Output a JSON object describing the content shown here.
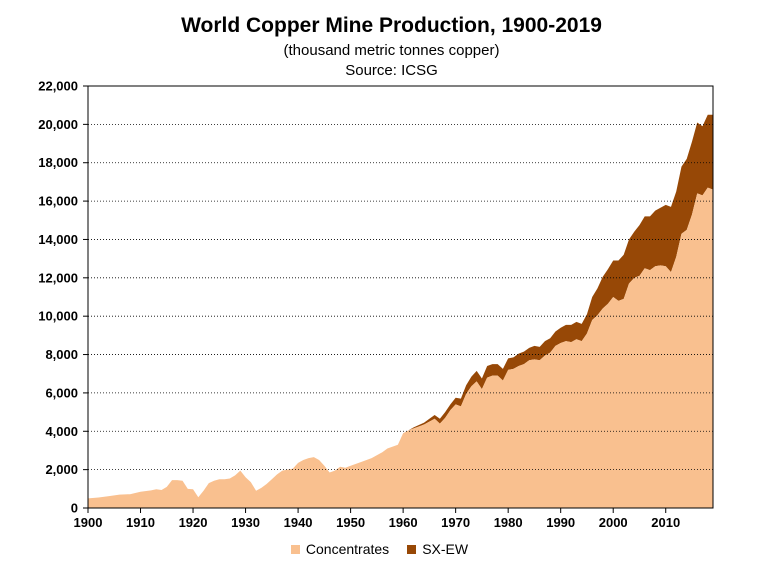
{
  "chart_data": {
    "type": "area",
    "title": "World Copper Mine Production, 1900-2019",
    "subtitle": "(thousand metric tonnes copper)",
    "source": "Source: ICSG",
    "xlabel": "",
    "ylabel": "",
    "xlim": [
      1900,
      2019
    ],
    "ylim": [
      0,
      22000
    ],
    "x_ticks": [
      "1900",
      "1910",
      "1920",
      "1930",
      "1940",
      "1950",
      "1960",
      "1970",
      "1980",
      "1990",
      "2000",
      "2010"
    ],
    "y_ticks": [
      "0",
      "2,000",
      "4,000",
      "6,000",
      "8,000",
      "10,000",
      "12,000",
      "14,000",
      "16,000",
      "18,000",
      "20,000",
      "22,000"
    ],
    "grid": "horizontal",
    "legend_position": "bottom",
    "stacked": true,
    "colors": {
      "concentrates": "#f9c08f",
      "sxew": "#974806",
      "gridline": "#000000"
    },
    "years": [
      1900,
      1902,
      1904,
      1906,
      1908,
      1910,
      1912,
      1913,
      1914,
      1915,
      1916,
      1917,
      1918,
      1919,
      1920,
      1921,
      1922,
      1923,
      1924,
      1925,
      1926,
      1927,
      1928,
      1929,
      1930,
      1931,
      1932,
      1933,
      1934,
      1935,
      1936,
      1937,
      1938,
      1939,
      1940,
      1941,
      1942,
      1943,
      1944,
      1945,
      1946,
      1947,
      1948,
      1949,
      1950,
      1952,
      1954,
      1956,
      1957,
      1958,
      1959,
      1960,
      1961,
      1962,
      1963,
      1964,
      1965,
      1966,
      1967,
      1968,
      1969,
      1970,
      1971,
      1972,
      1973,
      1974,
      1975,
      1976,
      1977,
      1978,
      1979,
      1980,
      1981,
      1982,
      1983,
      1984,
      1985,
      1986,
      1987,
      1988,
      1989,
      1990,
      1991,
      1992,
      1993,
      1994,
      1995,
      1996,
      1997,
      1998,
      1999,
      2000,
      2001,
      2002,
      2003,
      2004,
      2005,
      2006,
      2007,
      2008,
      2009,
      2010,
      2011,
      2012,
      2013,
      2014,
      2015,
      2016,
      2017,
      2018,
      2019
    ],
    "series": [
      {
        "name": "Concentrates",
        "values": [
          500,
          550,
          620,
          700,
          720,
          850,
          920,
          980,
          940,
          1100,
          1450,
          1450,
          1420,
          1000,
          980,
          560,
          900,
          1300,
          1420,
          1500,
          1500,
          1540,
          1700,
          1950,
          1600,
          1350,
          900,
          1050,
          1250,
          1500,
          1750,
          1950,
          2000,
          2050,
          2350,
          2500,
          2600,
          2650,
          2500,
          2200,
          1850,
          1950,
          2150,
          2100,
          2200,
          2400,
          2600,
          2900,
          3100,
          3200,
          3300,
          3900,
          4050,
          4150,
          4250,
          4350,
          4500,
          4650,
          4400,
          4700,
          5100,
          5400,
          5300,
          5950,
          6350,
          6600,
          6200,
          6800,
          6900,
          6900,
          6650,
          7200,
          7250,
          7400,
          7500,
          7700,
          7750,
          7700,
          7950,
          8100,
          8450,
          8600,
          8700,
          8650,
          8800,
          8700,
          9100,
          9800,
          10050,
          10400,
          10650,
          11000,
          10800,
          10900,
          11700,
          12000,
          12100,
          12500,
          12400,
          12600,
          12650,
          12600,
          12300,
          13100,
          14300,
          14500,
          15300,
          16400,
          16300,
          16700,
          16600
        ]
      },
      {
        "name": "SX-EW",
        "values": [
          0,
          0,
          0,
          0,
          0,
          0,
          0,
          0,
          0,
          0,
          0,
          0,
          0,
          0,
          0,
          0,
          0,
          0,
          0,
          0,
          0,
          0,
          0,
          0,
          0,
          0,
          0,
          0,
          0,
          0,
          0,
          0,
          0,
          0,
          0,
          0,
          0,
          0,
          0,
          0,
          0,
          0,
          0,
          0,
          0,
          0,
          0,
          0,
          0,
          0,
          0,
          0,
          0,
          50,
          80,
          100,
          150,
          200,
          250,
          300,
          300,
          350,
          400,
          450,
          500,
          550,
          550,
          600,
          600,
          600,
          600,
          600,
          600,
          650,
          650,
          650,
          700,
          700,
          750,
          750,
          750,
          800,
          850,
          900,
          900,
          900,
          1000,
          1200,
          1400,
          1650,
          1800,
          1900,
          2100,
          2300,
          2300,
          2400,
          2650,
          2700,
          2800,
          2900,
          3000,
          3200,
          3400,
          3400,
          3500,
          3700,
          3800,
          3700,
          3600,
          3800,
          3900
        ]
      }
    ]
  }
}
